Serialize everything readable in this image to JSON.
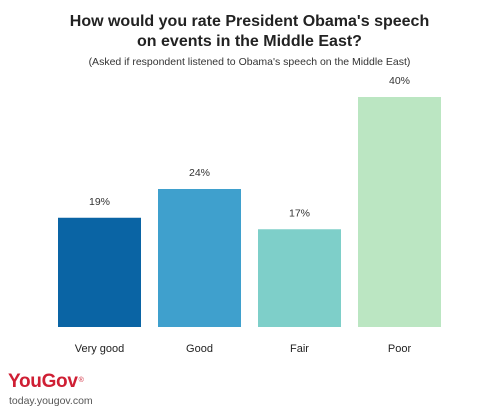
{
  "chart_data": {
    "type": "bar",
    "title_lines": [
      "How would you rate President Obama's speech",
      "on events in the Middle East?"
    ],
    "subtitle": "(Asked if respondent listened to Obama's speech on the Middle East)",
    "categories": [
      "Very good",
      "Good",
      "Fair",
      "Poor"
    ],
    "values": [
      19,
      24,
      17,
      40
    ],
    "value_labels": [
      "19%",
      "24%",
      "17%",
      "40%"
    ],
    "colors": [
      "#0a64a4",
      "#3fa0cd",
      "#7ecfc9",
      "#bbe6c2"
    ],
    "ylim": [
      0,
      40
    ],
    "grid": false,
    "legend": "none"
  },
  "branding": {
    "logo": "YouGov",
    "url": "today.yougov.com"
  }
}
